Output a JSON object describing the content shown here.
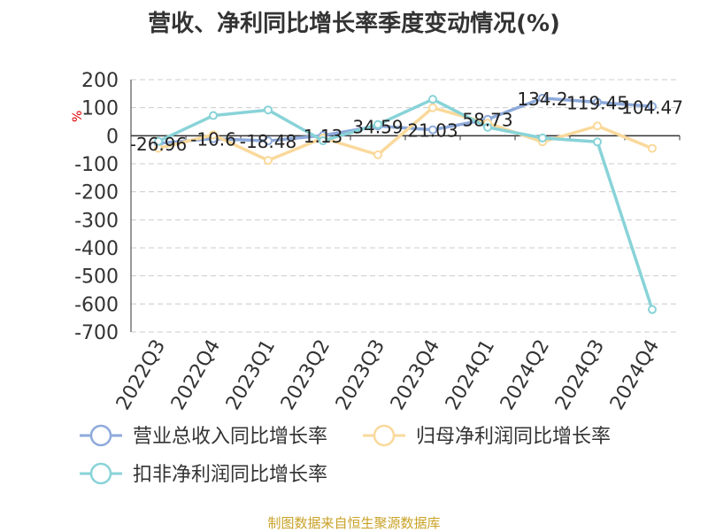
{
  "chart_data": {
    "type": "line",
    "title": "营收、净利同比增长率季度变动情况(%)",
    "ylabel": "%",
    "categories": [
      "2022Q3",
      "2022Q4",
      "2023Q1",
      "2023Q2",
      "2023Q3",
      "2023Q4",
      "2024Q1",
      "2024Q2",
      "2024Q3",
      "2024Q4"
    ],
    "ylim": [
      -700,
      200
    ],
    "yticks": [
      200,
      100,
      0,
      -100,
      -200,
      -300,
      -400,
      -500,
      -600,
      -700
    ],
    "grid": true,
    "legend_position": "bottom",
    "series": [
      {
        "name": "营业总收入同比增长率",
        "color": "#8eaadb",
        "values": [
          -26.96,
          -10.6,
          -18.48,
          1.13,
          34.59,
          21.03,
          58.73,
          134.2,
          119.45,
          104.47
        ],
        "labels": [
          "-26.96",
          "-10.6",
          "-18.48",
          "1.13",
          "34.59",
          "21.03",
          "58.73",
          "134.2",
          "119.45",
          "104.47"
        ]
      },
      {
        "name": "归母净利润同比增长率",
        "color": "#fad99b",
        "values": [
          -45,
          3,
          -88,
          -8,
          -68,
          100,
          45,
          -22,
          35,
          -45
        ]
      },
      {
        "name": "扣非净利润同比增长率",
        "color": "#88d3d8",
        "values": [
          -20,
          72,
          92,
          -18,
          40,
          130,
          30,
          -8,
          -22,
          -620
        ]
      }
    ]
  },
  "source": "制图数据来自恒生聚源数据库"
}
